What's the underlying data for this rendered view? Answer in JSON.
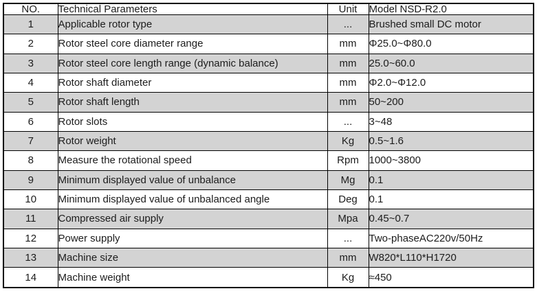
{
  "colors": {
    "border": "#000000",
    "row_stripe": "#d3d3d3",
    "text": "#1c1c1c",
    "background": "#ffffff"
  },
  "table": {
    "headers": [
      "NO.",
      "Technical Parameters",
      "Unit",
      "Model NSD-R2.0"
    ],
    "rows": [
      {
        "no": "1",
        "parameter": "Applicable rotor type",
        "unit": "...",
        "value": "Brushed small DC motor"
      },
      {
        "no": "2",
        "parameter": "Rotor steel core diameter range",
        "unit": "mm",
        "value": "Φ25.0~Φ80.0"
      },
      {
        "no": "3",
        "parameter": "Rotor steel core length range (dynamic balance)",
        "unit": "mm",
        "value": "25.0~60.0"
      },
      {
        "no": "4",
        "parameter": "Rotor shaft diameter",
        "unit": "mm",
        "value": "Φ2.0~Φ12.0"
      },
      {
        "no": "5",
        "parameter": "Rotor shaft length",
        "unit": "mm",
        "value": "50~200"
      },
      {
        "no": "6",
        "parameter": "Rotor slots",
        "unit": "...",
        "value": "3~48"
      },
      {
        "no": "7",
        "parameter": "Rotor weight",
        "unit": "Kg",
        "value": "0.5~1.6"
      },
      {
        "no": "8",
        "parameter": "Measure the rotational speed",
        "unit": "Rpm",
        "value": "1000~3800"
      },
      {
        "no": "9",
        "parameter": "Minimum displayed value of unbalance",
        "unit": "Mg",
        "value": "0.1"
      },
      {
        "no": "10",
        "parameter": "Minimum displayed value of unbalanced angle",
        "unit": "Deg",
        "value": "0.1"
      },
      {
        "no": "11",
        "parameter": "Compressed air supply",
        "unit": "Mpa",
        "value": "0.45~0.7"
      },
      {
        "no": "12",
        "parameter": "Power supply",
        "unit": "...",
        "value": "Two-phaseAC220v/50Hz"
      },
      {
        "no": "13",
        "parameter": "Machine size",
        "unit": "mm",
        "value": "W820*L110*H1720"
      },
      {
        "no": "14",
        "parameter": "Machine weight",
        "unit": "Kg",
        "value": "≈450"
      }
    ]
  }
}
